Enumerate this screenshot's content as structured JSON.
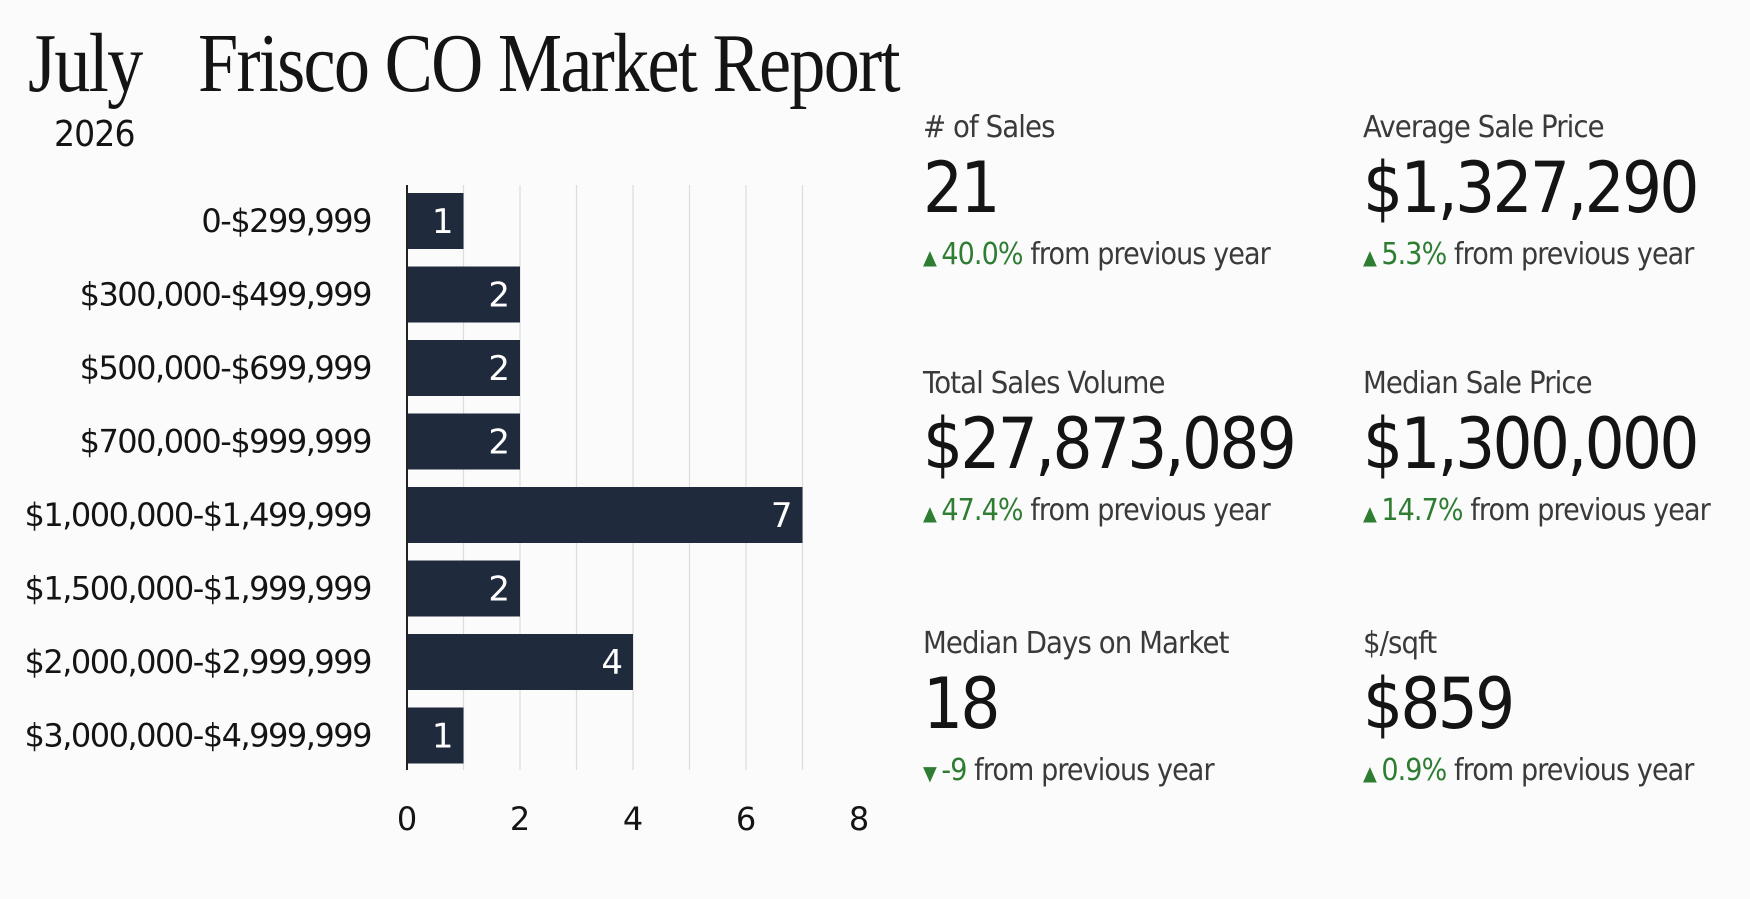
{
  "header": {
    "month": "July",
    "year": "2026",
    "title": "Frisco CO Market Report"
  },
  "chart_data": {
    "type": "bar",
    "orientation": "horizontal",
    "categories": [
      "0-$299,999",
      "$300,000-$499,999",
      "$500,000-$699,999",
      "$700,000-$999,999",
      "$1,000,000-$1,499,999",
      "$1,500,000-$1,999,999",
      "$2,000,000-$2,999,999",
      "$3,000,000-$4,999,999"
    ],
    "values": [
      1,
      2,
      2,
      2,
      7,
      2,
      4,
      1
    ],
    "xticks": [
      0,
      2,
      4,
      6,
      8
    ],
    "xlim": [
      0,
      7.5
    ],
    "bar_color": "#1f2a3c",
    "grid": true
  },
  "stats": [
    {
      "label": "# of Sales",
      "value": "21",
      "change": "40.0%",
      "direction": "up",
      "suffix": "from previous year"
    },
    {
      "label": "Average Sale Price",
      "value": "$1,327,290",
      "change": "5.3%",
      "direction": "up",
      "suffix": "from previous year"
    },
    {
      "label": "Total Sales Volume",
      "value": "$27,873,089",
      "change": "47.4%",
      "direction": "up",
      "suffix": "from previous year"
    },
    {
      "label": "Median Sale Price",
      "value": "$1,300,000",
      "change": "14.7%",
      "direction": "up",
      "suffix": "from previous year"
    },
    {
      "label": "Median Days on Market",
      "value": "18",
      "change": "-9",
      "direction": "down",
      "suffix": "from previous year"
    },
    {
      "label": "$/sqft",
      "value": "$859",
      "change": "0.9%",
      "direction": "up",
      "suffix": "from previous year"
    }
  ],
  "colors": {
    "positive": "#2e7d32",
    "bar": "#1f2a3c"
  },
  "icons": {
    "up": "arrow-up-icon",
    "down": "arrow-down-icon"
  }
}
